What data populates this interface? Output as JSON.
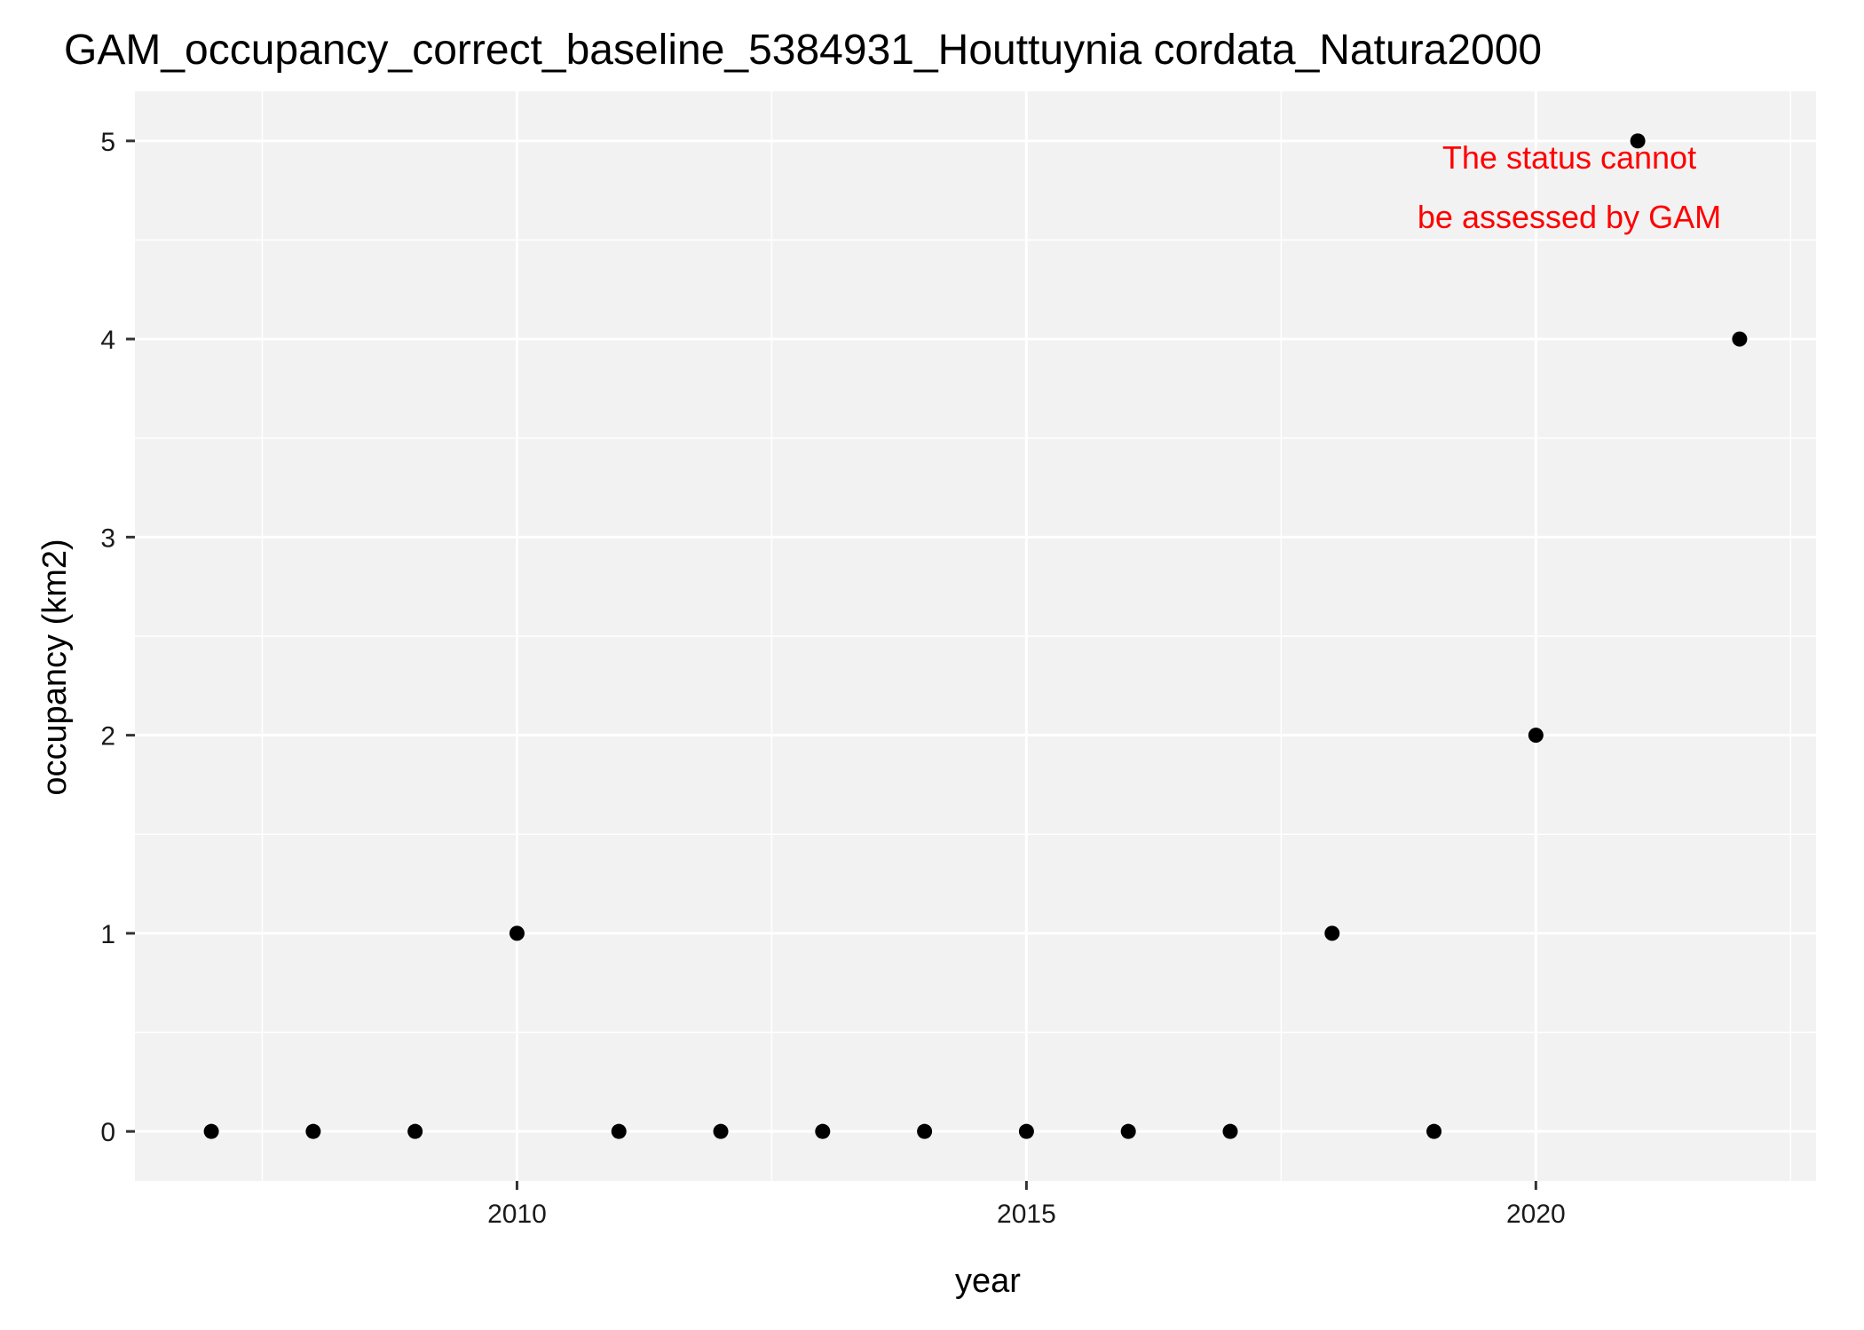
{
  "chart_data": {
    "type": "scatter",
    "title": "GAM_occupancy_correct_baseline_5384931_Houttuynia cordata_Natura2000",
    "xlabel": "year",
    "ylabel": "occupancy (km2)",
    "xlim": [
      2006.25,
      2022.75
    ],
    "ylim": [
      -0.25,
      5.25
    ],
    "x_ticks": [
      2010,
      2015,
      2020
    ],
    "x_tick_labels": [
      "2010",
      "2015",
      "2020"
    ],
    "y_ticks": [
      0,
      1,
      2,
      3,
      4,
      5
    ],
    "y_tick_labels": [
      "0",
      "1",
      "2",
      "3",
      "4",
      "5"
    ],
    "grid": true,
    "panel_background": "#f2f2f2",
    "point_color": "#000000",
    "points": [
      {
        "x": 2007,
        "y": 0
      },
      {
        "x": 2008,
        "y": 0
      },
      {
        "x": 2009,
        "y": 0
      },
      {
        "x": 2010,
        "y": 1
      },
      {
        "x": 2011,
        "y": 0
      },
      {
        "x": 2012,
        "y": 0
      },
      {
        "x": 2013,
        "y": 0
      },
      {
        "x": 2014,
        "y": 0
      },
      {
        "x": 2015,
        "y": 0
      },
      {
        "x": 2016,
        "y": 0
      },
      {
        "x": 2017,
        "y": 0
      },
      {
        "x": 2018,
        "y": 1
      },
      {
        "x": 2019,
        "y": 0
      },
      {
        "x": 2020,
        "y": 2
      },
      {
        "x": 2021,
        "y": 5
      },
      {
        "x": 2022,
        "y": 4
      }
    ],
    "annotation": {
      "lines": [
        "The status cannot",
        "be assessed by GAM"
      ],
      "color": "#ff0000",
      "placement": "top-right"
    }
  }
}
